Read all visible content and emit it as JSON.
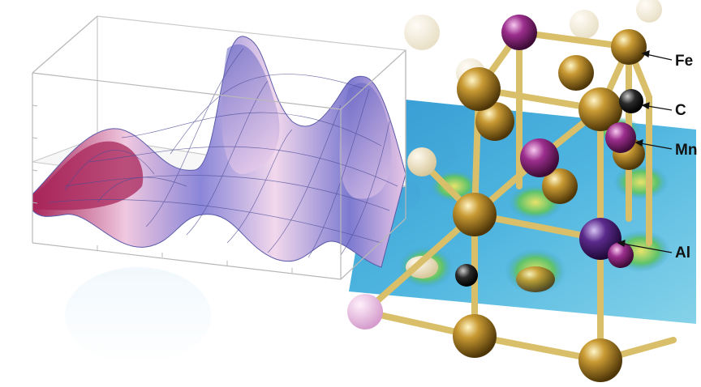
{
  "labels": {
    "fe": "Fe",
    "c": "C",
    "mn": "Mn",
    "al": "Al"
  },
  "colors": {
    "fe": "#b08a2a",
    "mn": "#8a2a7e",
    "c": "#1a1a1a",
    "al": "#5b2a8c",
    "bond": "#d9bf6a",
    "map_base": "#3fa3d6",
    "surface_high": "#7d7ad0",
    "surface_low": "#a8265a"
  },
  "atoms": [
    {
      "name": "fe-atom",
      "type": "fe"
    },
    {
      "name": "c-atom",
      "type": "c"
    },
    {
      "name": "mn-atom",
      "type": "mn"
    },
    {
      "name": "al-atom",
      "type": "al"
    }
  ]
}
